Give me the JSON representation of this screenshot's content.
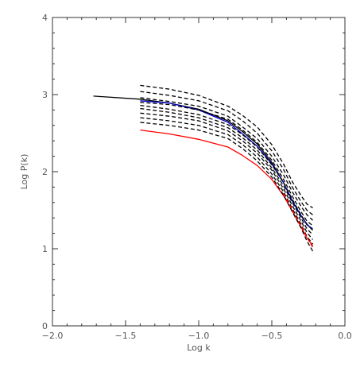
{
  "chart_data": {
    "type": "line",
    "title": "",
    "xlabel": "Log k",
    "ylabel": "Log P(k)",
    "xlim": [
      -2.0,
      0.0
    ],
    "ylim": [
      0,
      4
    ],
    "x_ticks": [
      "−2.0",
      "−1.5",
      "−1.0",
      "−0.5",
      "0.0"
    ],
    "x_tick_values": [
      -2.0,
      -1.5,
      -1.0,
      -0.5,
      0.0
    ],
    "y_ticks": [
      "0",
      "1",
      "2",
      "3",
      "4"
    ],
    "y_tick_values": [
      0,
      1,
      2,
      3,
      4
    ],
    "grid": false,
    "series": [
      {
        "color": "#000000",
        "style": "solid",
        "x": [
          -1.72,
          -1.4,
          -1.2,
          -1.0,
          -0.8,
          -0.7,
          -0.6,
          -0.5,
          -0.42,
          -0.36,
          -0.3,
          -0.26,
          -0.22
        ],
        "y": [
          2.98,
          2.94,
          2.89,
          2.81,
          2.66,
          2.52,
          2.36,
          2.12,
          1.86,
          1.62,
          1.43,
          1.32,
          1.24
        ]
      },
      {
        "color": "#0000cc",
        "style": "solid",
        "x": [
          -1.4,
          -1.2,
          -1.0,
          -0.8,
          -0.7,
          -0.6,
          -0.5,
          -0.42,
          -0.36,
          -0.3,
          -0.26,
          -0.22
        ],
        "y": [
          2.92,
          2.89,
          2.8,
          2.64,
          2.49,
          2.33,
          2.1,
          1.86,
          1.62,
          1.43,
          1.31,
          1.26
        ]
      },
      {
        "color": "#ff0000",
        "style": "solid",
        "x": [
          -1.4,
          -1.2,
          -1.0,
          -0.8,
          -0.7,
          -0.6,
          -0.5,
          -0.42,
          -0.36,
          -0.3,
          -0.26,
          -0.22
        ],
        "y": [
          2.54,
          2.49,
          2.42,
          2.32,
          2.21,
          2.08,
          1.9,
          1.69,
          1.49,
          1.28,
          1.14,
          1.04
        ]
      },
      {
        "color": "#000000",
        "style": "dashed",
        "x": [
          -1.4,
          -1.2,
          -1.0,
          -0.8,
          -0.7,
          -0.6,
          -0.5,
          -0.42,
          -0.36,
          -0.3,
          -0.26,
          -0.22
        ],
        "y": [
          3.12,
          3.07,
          2.99,
          2.85,
          2.73,
          2.58,
          2.35,
          2.1,
          1.87,
          1.69,
          1.58,
          1.53
        ]
      },
      {
        "color": "#000000",
        "style": "dashed",
        "x": [
          -1.4,
          -1.2,
          -1.0,
          -0.8,
          -0.7,
          -0.6,
          -0.5,
          -0.42,
          -0.36,
          -0.3,
          -0.26,
          -0.22
        ],
        "y": [
          3.04,
          2.99,
          2.92,
          2.79,
          2.66,
          2.5,
          2.27,
          2.03,
          1.8,
          1.61,
          1.5,
          1.44
        ]
      },
      {
        "color": "#000000",
        "style": "dashed",
        "x": [
          -1.4,
          -1.2,
          -1.0,
          -0.8,
          -0.7,
          -0.6,
          -0.5,
          -0.42,
          -0.36,
          -0.3,
          -0.26,
          -0.22
        ],
        "y": [
          2.96,
          2.91,
          2.85,
          2.72,
          2.58,
          2.43,
          2.2,
          1.96,
          1.74,
          1.55,
          1.44,
          1.37
        ]
      },
      {
        "color": "#000000",
        "style": "dashed",
        "x": [
          -1.4,
          -1.2,
          -1.0,
          -0.8,
          -0.7,
          -0.6,
          -0.5,
          -0.42,
          -0.36,
          -0.3,
          -0.26,
          -0.22
        ],
        "y": [
          2.9,
          2.87,
          2.8,
          2.68,
          2.54,
          2.38,
          2.15,
          1.9,
          1.68,
          1.48,
          1.36,
          1.3
        ]
      },
      {
        "color": "#000000",
        "style": "dashed",
        "x": [
          -1.4,
          -1.2,
          -1.0,
          -0.8,
          -0.7,
          -0.6,
          -0.5,
          -0.42,
          -0.36,
          -0.3,
          -0.26,
          -0.22
        ],
        "y": [
          2.86,
          2.81,
          2.74,
          2.61,
          2.48,
          2.32,
          2.09,
          1.86,
          1.64,
          1.44,
          1.32,
          1.24
        ]
      },
      {
        "color": "#000000",
        "style": "dashed",
        "x": [
          -1.4,
          -1.2,
          -1.0,
          -0.8,
          -0.7,
          -0.6,
          -0.5,
          -0.42,
          -0.36,
          -0.3,
          -0.26,
          -0.22
        ],
        "y": [
          2.82,
          2.77,
          2.7,
          2.57,
          2.44,
          2.28,
          2.05,
          1.82,
          1.6,
          1.4,
          1.26,
          1.18
        ]
      },
      {
        "color": "#000000",
        "style": "dashed",
        "x": [
          -1.4,
          -1.2,
          -1.0,
          -0.8,
          -0.7,
          -0.6,
          -0.5,
          -0.42,
          -0.36,
          -0.3,
          -0.26,
          -0.22
        ],
        "y": [
          2.76,
          2.72,
          2.66,
          2.53,
          2.4,
          2.24,
          2.02,
          1.78,
          1.56,
          1.36,
          1.21,
          1.12
        ]
      },
      {
        "color": "#000000",
        "style": "dashed",
        "x": [
          -1.4,
          -1.2,
          -1.0,
          -0.8,
          -0.7,
          -0.6,
          -0.5,
          -0.42,
          -0.36,
          -0.3,
          -0.26,
          -0.22
        ],
        "y": [
          2.7,
          2.66,
          2.6,
          2.48,
          2.35,
          2.19,
          1.97,
          1.74,
          1.52,
          1.32,
          1.16,
          1.06
        ]
      },
      {
        "color": "#000000",
        "style": "dashed",
        "x": [
          -1.4,
          -1.2,
          -1.0,
          -0.8,
          -0.7,
          -0.6,
          -0.5,
          -0.42,
          -0.36,
          -0.3,
          -0.26,
          -0.22
        ],
        "y": [
          2.64,
          2.6,
          2.54,
          2.43,
          2.3,
          2.14,
          1.93,
          1.7,
          1.48,
          1.27,
          1.1,
          0.97
        ]
      },
      {
        "color": "#ff0000",
        "style": "dashed",
        "x": [
          -0.42,
          -0.36,
          -0.3,
          -0.26,
          -0.22
        ],
        "y": [
          1.72,
          1.5,
          1.3,
          1.15,
          1.02
        ]
      }
    ]
  }
}
